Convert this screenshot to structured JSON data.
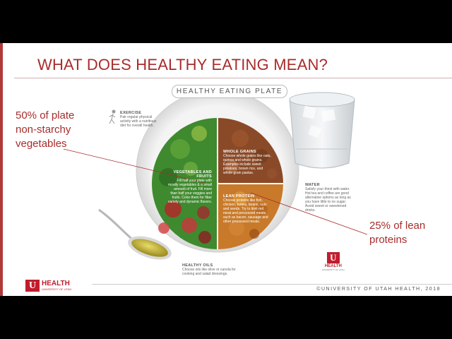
{
  "slide": {
    "title": "WHAT DOES HEALTHY EATING MEAN?",
    "plate_badge": "HEALTHY EATING PLATE",
    "callout_left": "50% of plate\nnon-starchy\nvegetables",
    "callout_right": "25% of lean\nproteins",
    "copyright": "©UNIVERSITY OF UTAH HEALTH, 2018"
  },
  "plate": {
    "exercise": {
      "title": "EXERCISE",
      "text": "Pair regular physical activity with a nutritious diet for overall health."
    },
    "vegetables": {
      "title": "VEGETABLES AND FRUITS",
      "text": "Fill half your plate with mostly vegetables & a small amount of fruit. Fill more than half your veggies and fruits. Color them for fiber variety and dynamic flavors."
    },
    "grains": {
      "title": "WHOLE GRAINS",
      "text": "Choose whole grains like oats, quinoa and whole grains. Examples include sweet potatoes, brown rice, and whole grain pastas."
    },
    "protein": {
      "title": "LEAN PROTEIN",
      "text": "Choose proteins like fish, chicken, turkey, beans, nuts and seeds. Try to limit red meat and processed meats such as bacon, sausage and other processed meats."
    },
    "water": {
      "title": "WATER",
      "text": "Satisfy your thirst with water. Hot tea and coffee are good alternative options as long as you have little to no sugar. Avoid sweet or sweetened drinks."
    },
    "oils": {
      "title": "HEALTHY OILS",
      "text": "Choose oils like olive or canola for cooking and salad dressings."
    }
  },
  "logos": {
    "main_mark": "U",
    "main_text": "HEALTH",
    "main_sub": "UNIVERSITY OF UTAH",
    "small_mark": "U",
    "small_text": "HEALTH",
    "small_sub": "UNIVERSITY OF UTAH"
  },
  "colors": {
    "accent": "#a82c2c",
    "brand": "#c01c2c"
  }
}
